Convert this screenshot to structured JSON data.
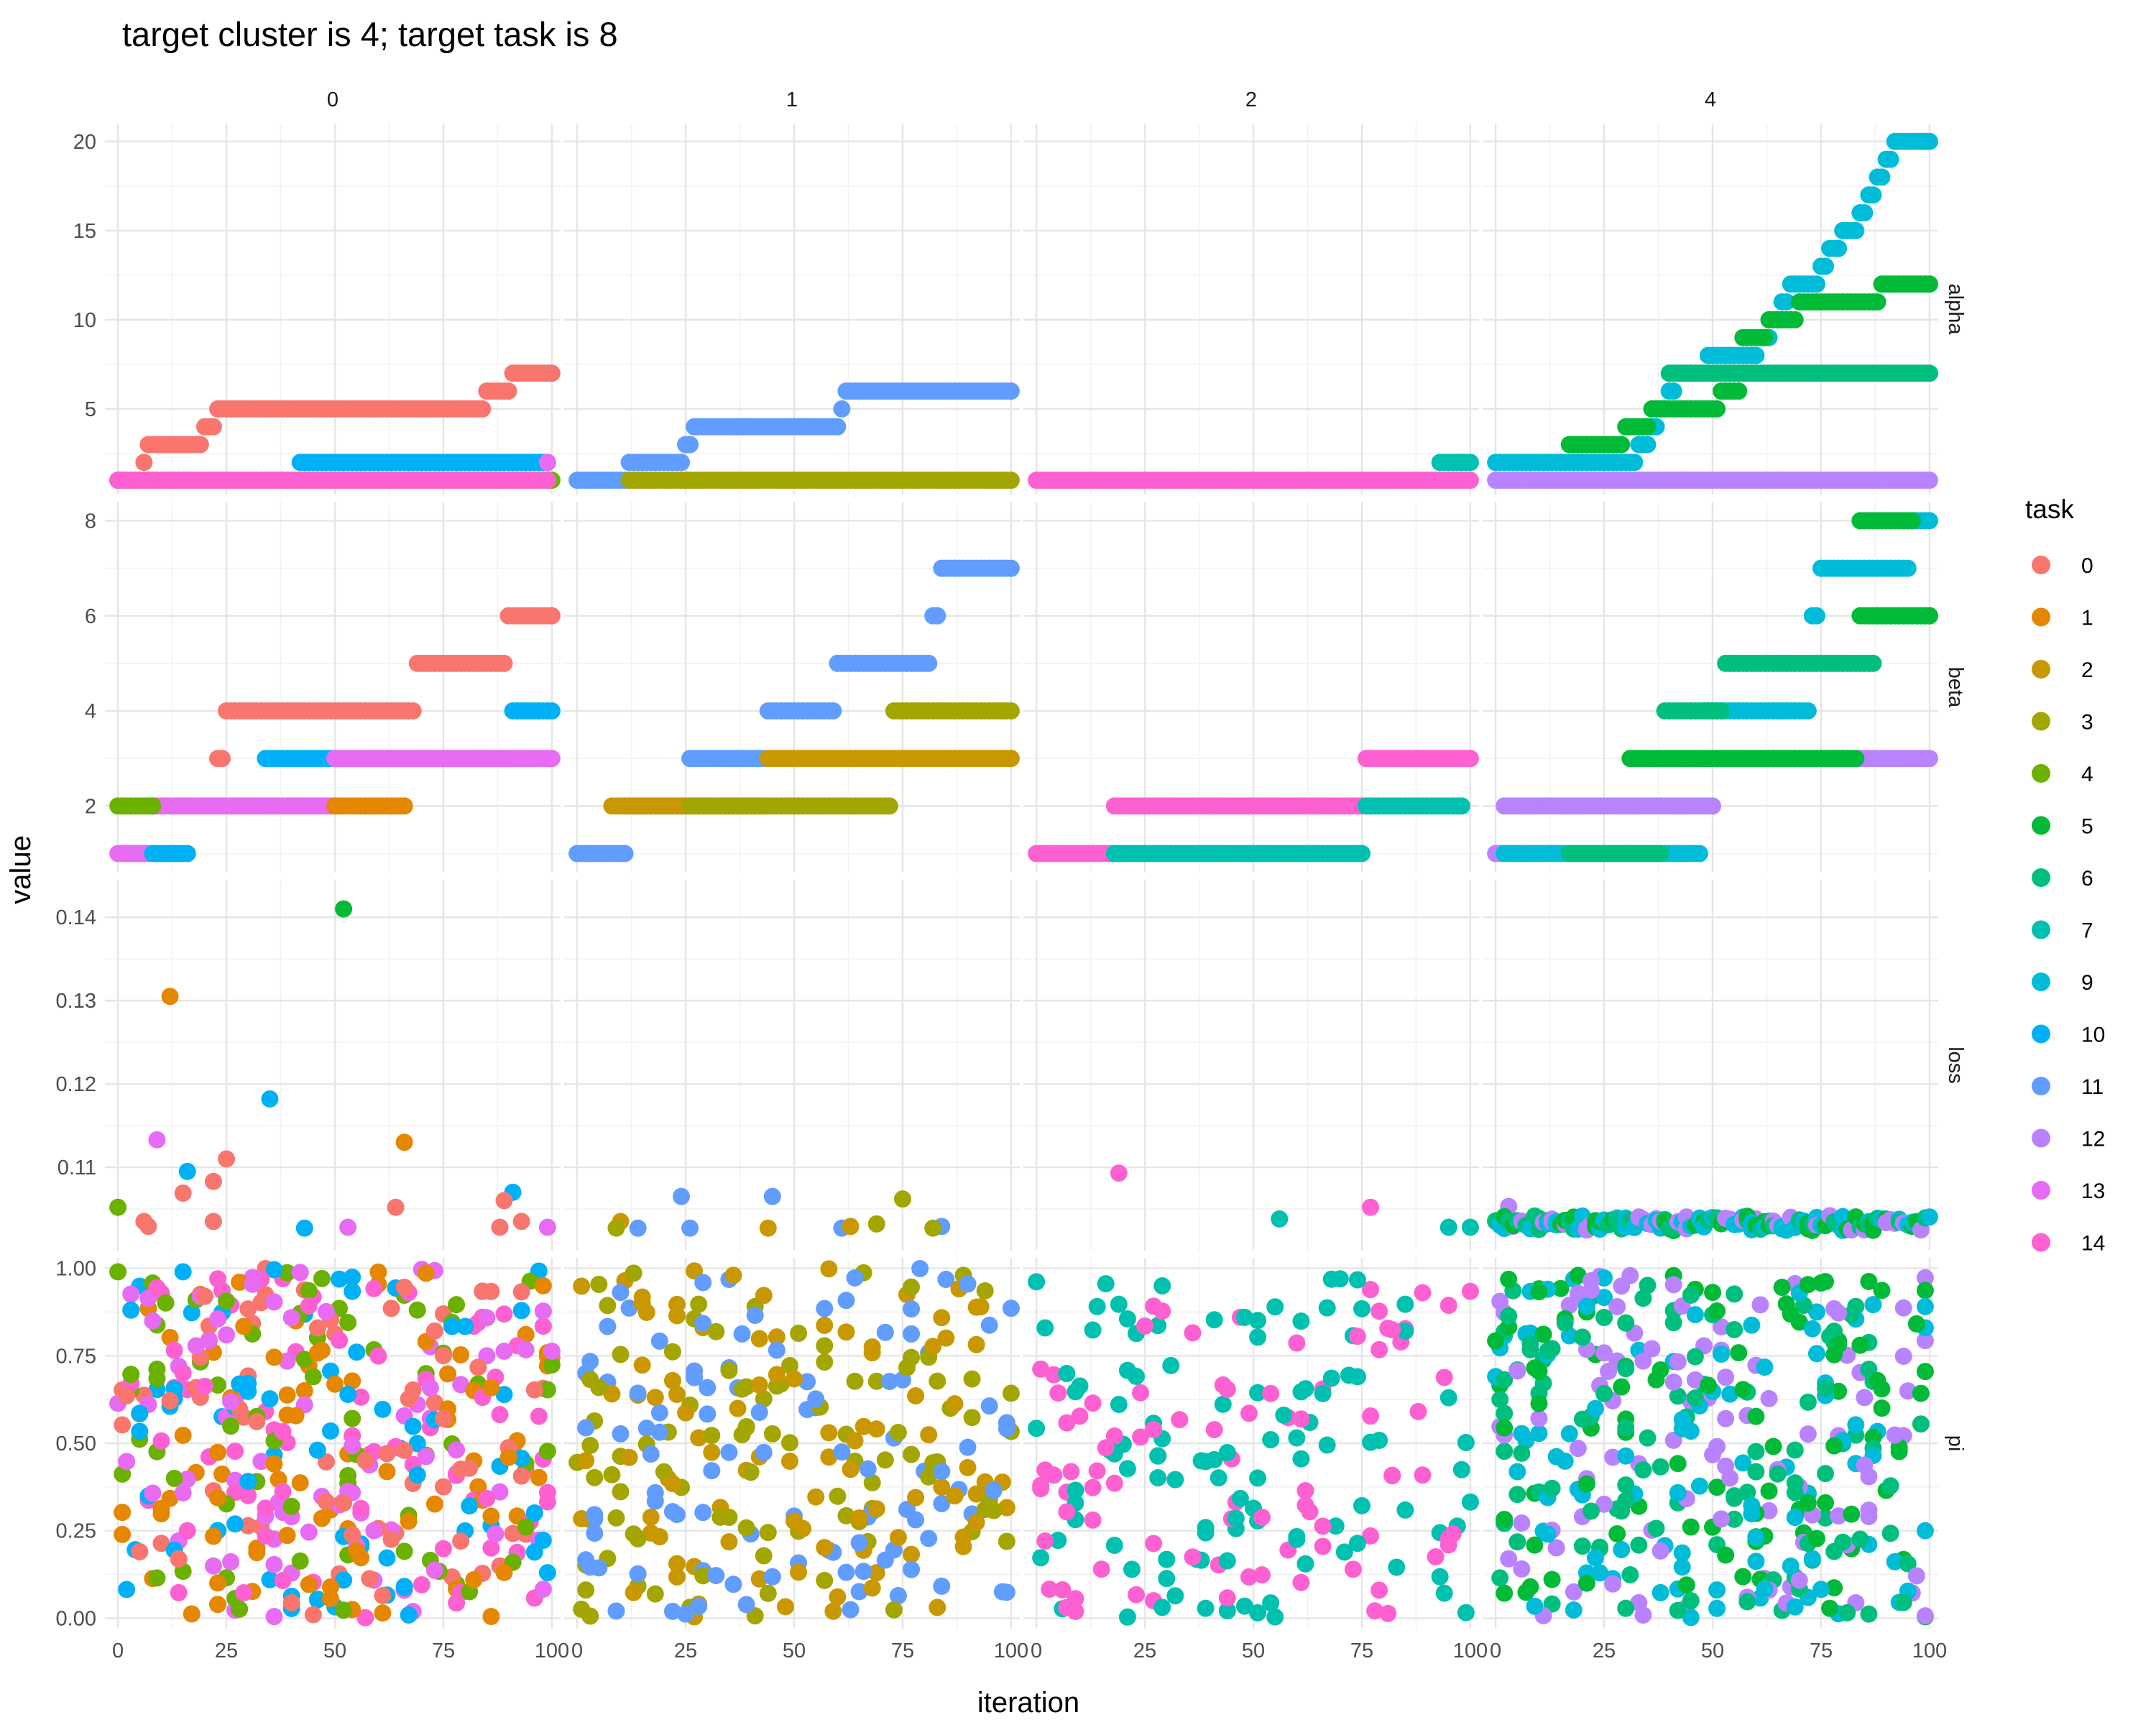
{
  "chart_data": {
    "type": "scatter",
    "title": "target cluster is 4; target task is 8",
    "xlabel": "iteration",
    "ylabel": "value",
    "grid": true,
    "legend_placement": "right",
    "legend_title": "task",
    "legend": [
      {
        "label": "0",
        "color": "#F8766D"
      },
      {
        "label": "1",
        "color": "#E58700"
      },
      {
        "label": "2",
        "color": "#C99800"
      },
      {
        "label": "3",
        "color": "#A3A500"
      },
      {
        "label": "4",
        "color": "#6BB100"
      },
      {
        "label": "5",
        "color": "#00BA38"
      },
      {
        "label": "6",
        "color": "#00BF7D"
      },
      {
        "label": "7",
        "color": "#00C0AF"
      },
      {
        "label": "9",
        "color": "#00BCD8"
      },
      {
        "label": "10",
        "color": "#00B0F6"
      },
      {
        "label": "11",
        "color": "#619CFF"
      },
      {
        "label": "12",
        "color": "#B983FF"
      },
      {
        "label": "13",
        "color": "#E76BF3"
      },
      {
        "label": "14",
        "color": "#FD61D1"
      }
    ],
    "facet_columns": [
      "0",
      "1",
      "2",
      "4"
    ],
    "facet_rows": [
      "alpha",
      "beta",
      "loss",
      "pi"
    ],
    "x_range": [
      -3,
      102
    ],
    "x_ticks": [
      0,
      25,
      50,
      75,
      100
    ],
    "x_tick_labels": [
      "0",
      "25",
      "50",
      "75",
      "100"
    ],
    "rows": [
      {
        "name": "alpha",
        "ylim": [
          0.2,
          21
        ],
        "ticks": [
          5,
          10,
          15,
          20
        ],
        "tick_labels": [
          "5",
          "10",
          "15",
          "20"
        ]
      },
      {
        "name": "beta",
        "ylim": [
          0.6,
          8.4
        ],
        "ticks": [
          2,
          4,
          6,
          8
        ],
        "tick_labels": [
          "2",
          "4",
          "6",
          "8"
        ]
      },
      {
        "name": "loss",
        "ylim": [
          0.1,
          0.1445
        ],
        "ticks": [
          0.11,
          0.12,
          0.13,
          0.14
        ],
        "tick_labels": [
          "0.11",
          "0.12",
          "0.13",
          "0.14"
        ]
      },
      {
        "name": "pi",
        "ylim": [
          -0.03,
          1.03
        ],
        "ticks": [
          0,
          0.25,
          0.5,
          0.75,
          1.0
        ],
        "tick_labels": [
          "0.00",
          "0.25",
          "0.50",
          "0.75",
          "1.00"
        ]
      }
    ],
    "step_series": [
      {
        "col": "0",
        "row": "alpha",
        "task": "0",
        "steps": [
          [
            0,
            1
          ],
          [
            6,
            2
          ],
          [
            7,
            3
          ],
          [
            20,
            4
          ],
          [
            23,
            5
          ],
          [
            85,
            6
          ],
          [
            91,
            7
          ],
          [
            100,
            7
          ]
        ]
      },
      {
        "col": "0",
        "row": "alpha",
        "task": "10",
        "steps": [
          [
            42,
            2
          ],
          [
            99,
            2
          ]
        ]
      },
      {
        "col": "0",
        "row": "alpha",
        "task": "4",
        "steps": [
          [
            0,
            1
          ],
          [
            100,
            1
          ]
        ]
      },
      {
        "col": "0",
        "row": "alpha",
        "task": "14",
        "steps": [
          [
            0,
            1
          ],
          [
            99,
            1
          ]
        ]
      },
      {
        "col": "0",
        "row": "alpha",
        "task": "13",
        "steps": [
          [
            99,
            2
          ],
          [
            99,
            2
          ]
        ]
      },
      {
        "col": "0",
        "row": "beta",
        "task": "13",
        "steps": [
          [
            0,
            1
          ],
          [
            8,
            2
          ],
          [
            50,
            2
          ]
        ]
      },
      {
        "col": "0",
        "row": "beta",
        "task": "10",
        "steps": [
          [
            8,
            1
          ],
          [
            16,
            1
          ]
        ]
      },
      {
        "col": "0",
        "row": "beta",
        "task": "4",
        "steps": [
          [
            0,
            2
          ],
          [
            8,
            2
          ]
        ]
      },
      {
        "col": "0",
        "row": "beta",
        "task": "1",
        "steps": [
          [
            50,
            2
          ],
          [
            66,
            2
          ]
        ]
      },
      {
        "col": "0",
        "row": "beta",
        "task": "0",
        "steps": [
          [
            23,
            3
          ],
          [
            25,
            4
          ],
          [
            64,
            4
          ],
          [
            69,
            5
          ],
          [
            89,
            5
          ],
          [
            90,
            6
          ],
          [
            100,
            6
          ]
        ]
      },
      {
        "col": "0",
        "row": "beta",
        "task": "10",
        "steps": [
          [
            34,
            3
          ],
          [
            50,
            3
          ],
          [
            91,
            4
          ],
          [
            100,
            4
          ]
        ]
      },
      {
        "col": "0",
        "row": "beta",
        "task": "13",
        "steps": [
          [
            50,
            3
          ],
          [
            100,
            3
          ]
        ]
      },
      {
        "col": "1",
        "row": "alpha",
        "task": "11",
        "steps": [
          [
            0,
            1
          ],
          [
            12,
            2
          ],
          [
            25,
            3
          ],
          [
            27,
            4
          ],
          [
            61,
            5
          ],
          [
            62,
            6
          ],
          [
            100,
            6
          ]
        ]
      },
      {
        "col": "1",
        "row": "alpha",
        "task": "3",
        "steps": [
          [
            12,
            1
          ],
          [
            100,
            1
          ]
        ]
      },
      {
        "col": "1",
        "row": "beta",
        "task": "11",
        "steps": [
          [
            0,
            1
          ],
          [
            10,
            1
          ],
          [
            12,
            2
          ],
          [
            26,
            3
          ],
          [
            44,
            4
          ],
          [
            60,
            5
          ],
          [
            82,
            6
          ],
          [
            84,
            7
          ],
          [
            100,
            7
          ]
        ]
      },
      {
        "col": "1",
        "row": "beta",
        "task": "2",
        "steps": [
          [
            8,
            2
          ],
          [
            10,
            2
          ],
          [
            44,
            3
          ],
          [
            100,
            3
          ]
        ]
      },
      {
        "col": "1",
        "row": "beta",
        "task": "3",
        "steps": [
          [
            26,
            2
          ],
          [
            69,
            2
          ],
          [
            73,
            4
          ],
          [
            100,
            4
          ]
        ]
      },
      {
        "col": "2",
        "row": "alpha",
        "task": "14",
        "steps": [
          [
            0,
            1
          ],
          [
            100,
            1
          ]
        ]
      },
      {
        "col": "2",
        "row": "alpha",
        "task": "7",
        "steps": [
          [
            93,
            2
          ],
          [
            100,
            2
          ]
        ]
      },
      {
        "col": "2",
        "row": "beta",
        "task": "14",
        "steps": [
          [
            0,
            1
          ],
          [
            18,
            2
          ],
          [
            76,
            3
          ],
          [
            100,
            3
          ]
        ]
      },
      {
        "col": "2",
        "row": "beta",
        "task": "7",
        "steps": [
          [
            18,
            1
          ],
          [
            56,
            1
          ],
          [
            76,
            2
          ],
          [
            98,
            2
          ]
        ]
      },
      {
        "col": "4",
        "row": "alpha",
        "task": "12",
        "steps": [
          [
            0,
            1
          ],
          [
            100,
            1
          ]
        ]
      },
      {
        "col": "4",
        "row": "alpha",
        "task": "9",
        "steps": [
          [
            0,
            2
          ],
          [
            30,
            2
          ],
          [
            33,
            3
          ],
          [
            36,
            4
          ],
          [
            38,
            5
          ],
          [
            40,
            6
          ],
          [
            42,
            7
          ],
          [
            49,
            8
          ],
          [
            61,
            9
          ],
          [
            64,
            10
          ],
          [
            66,
            11
          ],
          [
            68,
            12
          ],
          [
            75,
            13
          ],
          [
            77,
            14
          ],
          [
            80,
            15
          ],
          [
            84,
            16
          ],
          [
            86,
            17
          ],
          [
            88,
            18
          ],
          [
            90,
            19
          ],
          [
            92,
            20
          ],
          [
            100,
            20
          ]
        ]
      },
      {
        "col": "4",
        "row": "alpha",
        "task": "5",
        "steps": [
          [
            17,
            3
          ],
          [
            30,
            4
          ],
          [
            36,
            5
          ],
          [
            52,
            6
          ],
          [
            57,
            9
          ],
          [
            63,
            10
          ],
          [
            70,
            11
          ],
          [
            89,
            12
          ],
          [
            100,
            12
          ]
        ]
      },
      {
        "col": "4",
        "row": "alpha",
        "task": "6",
        "steps": [
          [
            40,
            7
          ],
          [
            100,
            7
          ]
        ]
      },
      {
        "col": "4",
        "row": "beta",
        "task": "12",
        "steps": [
          [
            0,
            1
          ],
          [
            2,
            2
          ],
          [
            51,
            3
          ],
          [
            100,
            3
          ]
        ]
      },
      {
        "col": "4",
        "row": "beta",
        "task": "9",
        "steps": [
          [
            2,
            1
          ],
          [
            17,
            1
          ],
          [
            48,
            4
          ],
          [
            70,
            4
          ],
          [
            73,
            6
          ],
          [
            75,
            7
          ],
          [
            96,
            8
          ],
          [
            100,
            8
          ]
        ]
      },
      {
        "col": "4",
        "row": "beta",
        "task": "6",
        "steps": [
          [
            17,
            1
          ],
          [
            34,
            1
          ],
          [
            39,
            4
          ],
          [
            48,
            4
          ],
          [
            53,
            5
          ],
          [
            83,
            5
          ],
          [
            88,
            6
          ],
          [
            100,
            6
          ]
        ]
      },
      {
        "col": "4",
        "row": "beta",
        "task": "5",
        "steps": [
          [
            31,
            3
          ],
          [
            51,
            3
          ],
          [
            84,
            6
          ],
          [
            100,
            6
          ],
          [
            84,
            8
          ],
          [
            96,
            8
          ]
        ]
      }
    ],
    "loss_points": [
      {
        "col": "0",
        "task": "5",
        "points": [
          [
            52,
            0.141
          ]
        ]
      },
      {
        "col": "0",
        "task": "1",
        "points": [
          [
            12,
            0.1305
          ],
          [
            66,
            0.113
          ]
        ]
      },
      {
        "col": "0",
        "task": "10",
        "points": [
          [
            35,
            0.1182
          ],
          [
            91,
            0.107
          ],
          [
            43,
            0.1027
          ],
          [
            16,
            0.1095
          ]
        ]
      },
      {
        "col": "0",
        "task": "13",
        "points": [
          [
            9,
            0.1133
          ],
          [
            53,
            0.1028
          ],
          [
            99,
            0.1028
          ]
        ]
      },
      {
        "col": "0",
        "task": "0",
        "points": [
          [
            25,
            0.111
          ],
          [
            22,
            0.1083
          ],
          [
            15,
            0.1069
          ],
          [
            6,
            0.1035
          ],
          [
            7,
            0.1029
          ],
          [
            22,
            0.1035
          ],
          [
            64,
            0.1052
          ],
          [
            88,
            0.1028
          ],
          [
            89,
            0.106
          ],
          [
            93,
            0.1035
          ]
        ]
      },
      {
        "col": "0",
        "task": "4",
        "points": [
          [
            0,
            0.1052
          ]
        ]
      },
      {
        "col": "1",
        "task": "11",
        "points": [
          [
            24,
            0.1065
          ],
          [
            45,
            0.1065
          ],
          [
            14,
            0.1027
          ],
          [
            26,
            0.1027
          ],
          [
            61,
            0.1027
          ],
          [
            84,
            0.1029
          ]
        ]
      },
      {
        "col": "1",
        "task": "2",
        "points": [
          [
            10,
            0.1035
          ],
          [
            44,
            0.1027
          ],
          [
            63,
            0.1029
          ]
        ]
      },
      {
        "col": "1",
        "task": "3",
        "points": [
          [
            9,
            0.1027
          ],
          [
            69,
            0.1032
          ],
          [
            75,
            0.1062
          ],
          [
            82,
            0.1027
          ]
        ]
      },
      {
        "col": "2",
        "task": "14",
        "points": [
          [
            19,
            0.1093
          ],
          [
            77,
            0.1052
          ]
        ]
      },
      {
        "col": "2",
        "task": "7",
        "points": [
          [
            56,
            0.1038
          ],
          [
            95,
            0.1028
          ],
          [
            100,
            0.1028
          ]
        ]
      },
      {
        "col": "4",
        "task": "12",
        "points": [
          [
            3,
            0.1053
          ],
          [
            49,
            0.1038
          ],
          [
            60,
            0.1038
          ]
        ]
      }
    ],
    "loss_band": {
      "col": "4",
      "tasks": [
        "9",
        "5",
        "6",
        "12"
      ],
      "x_range": [
        0,
        100
      ],
      "y_range": [
        0.1024,
        0.1042
      ]
    },
    "pi_scatter": [
      {
        "col": "0",
        "tasks": [
          "0",
          "1",
          "4",
          "10",
          "13",
          "14"
        ],
        "n_points": 450,
        "y_range": [
          0,
          1
        ],
        "outliers": [
          [
            0,
            0.99,
            "4"
          ],
          [
            15,
            0.99,
            "10"
          ]
        ]
      },
      {
        "col": "1",
        "tasks": [
          "2",
          "3",
          "11"
        ],
        "n_points": 300,
        "y_range": [
          0,
          1
        ]
      },
      {
        "col": "2",
        "tasks": [
          "7",
          "14"
        ],
        "n_points": 200,
        "y_range": [
          0,
          0.97
        ]
      },
      {
        "col": "4",
        "tasks": [
          "5",
          "6",
          "9",
          "12"
        ],
        "n_points": 400,
        "y_range": [
          0,
          0.98
        ]
      }
    ]
  }
}
